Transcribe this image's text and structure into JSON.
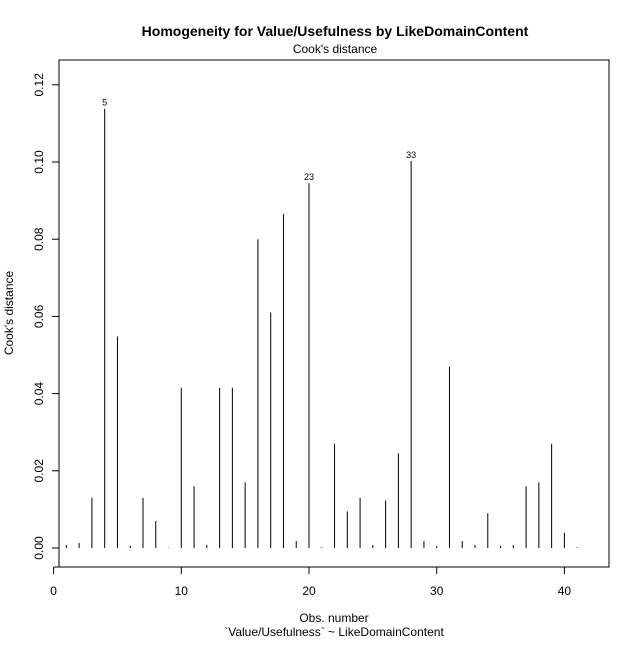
{
  "chart_data": {
    "type": "bar",
    "title": "Homogeneity for Value/Usefulness by LikeDomainContent",
    "subtitle": "Cook's distance",
    "xlabel": "Obs. number",
    "xlabel2": "`Value/Usefulness` ~ LikeDomainContent",
    "ylabel": "Cook's distance",
    "xlim": [
      0,
      42
    ],
    "ylim": [
      0,
      0.12
    ],
    "x_ticks": [
      0,
      10,
      20,
      30,
      40
    ],
    "y_ticks": [
      "0.00",
      "0.02",
      "0.04",
      "0.06",
      "0.08",
      "0.10",
      "0.12"
    ],
    "x": [
      1,
      2,
      3,
      4,
      5,
      6,
      7,
      8,
      9,
      10,
      11,
      12,
      13,
      14,
      15,
      16,
      17,
      18,
      19,
      20,
      21,
      22,
      23,
      24,
      25,
      26,
      27,
      28,
      29,
      30,
      31,
      32,
      33,
      34,
      35,
      36,
      37,
      38,
      39,
      40,
      41
    ],
    "values": [
      0.0008,
      0.0013,
      0.013,
      0.1138,
      0.0548,
      0.0006,
      0.013,
      0.007,
      0.0001,
      0.0415,
      0.016,
      0.0008,
      0.0415,
      0.0415,
      0.017,
      0.08,
      0.061,
      0.0865,
      0.0018,
      0.0945,
      0.0002,
      0.027,
      0.0095,
      0.013,
      0.0008,
      0.0123,
      0.0245,
      0.1003,
      0.0018,
      0.0005,
      0.047,
      0.0018,
      0.0008,
      0.009,
      0.0006,
      0.0008,
      0.016,
      0.017,
      0.027,
      0.004,
      0.0002
    ],
    "point_labels": [
      {
        "label": "5",
        "index": 3
      },
      {
        "label": "23",
        "index": 19
      },
      {
        "label": "33",
        "index": 27
      }
    ]
  }
}
